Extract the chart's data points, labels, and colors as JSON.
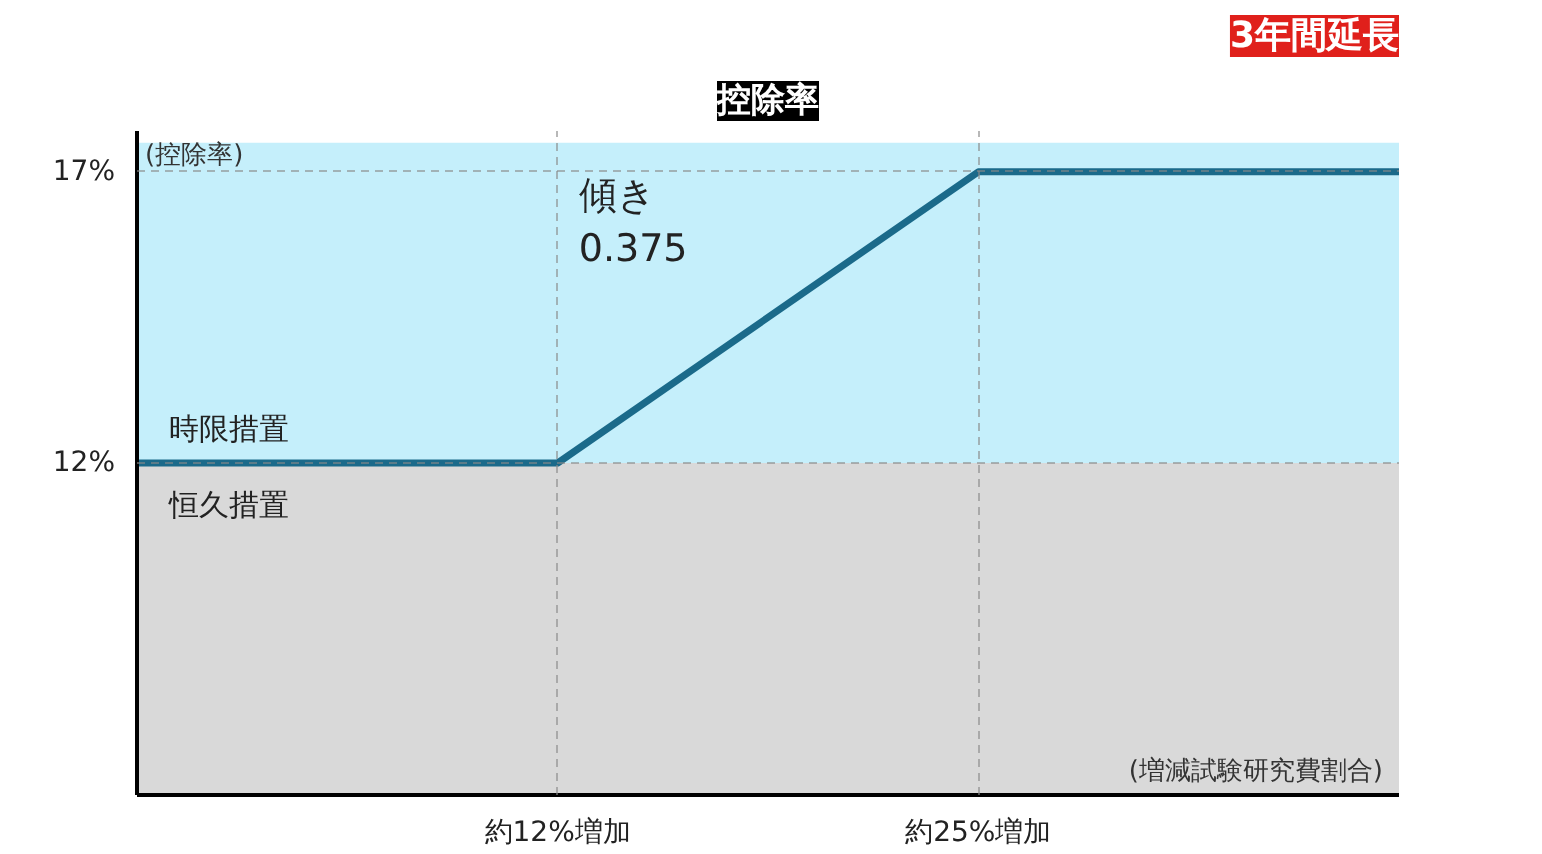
{
  "chart_data": {
    "type": "line",
    "title": "控除率",
    "xlabel": "(増減試験研究費割合)",
    "ylabel": "(控除率)",
    "categories": [
      null,
      "約12%増加",
      "約25%増加",
      null
    ],
    "series": [
      {
        "color": "#1b6a8a",
        "values": [
          12,
          12,
          17,
          17
        ]
      }
    ],
    "ylim": [
      6.3,
      17.7
    ],
    "yticks": [
      {
        "value": 12,
        "label": "12%"
      },
      {
        "value": 17,
        "label": "17%"
      }
    ],
    "bands": [
      {
        "axis": "y",
        "from": 12,
        "to": 17.5,
        "label": "時限措置",
        "color": "#c5effb"
      },
      {
        "axis": "y",
        "from": 6.3,
        "to": 12,
        "label": "恒久措置",
        "color": "#d9d9d9"
      }
    ],
    "grid": true,
    "line_style": "solid",
    "annotations": [
      "傾き\n0.375",
      "3年間延長"
    ]
  }
}
